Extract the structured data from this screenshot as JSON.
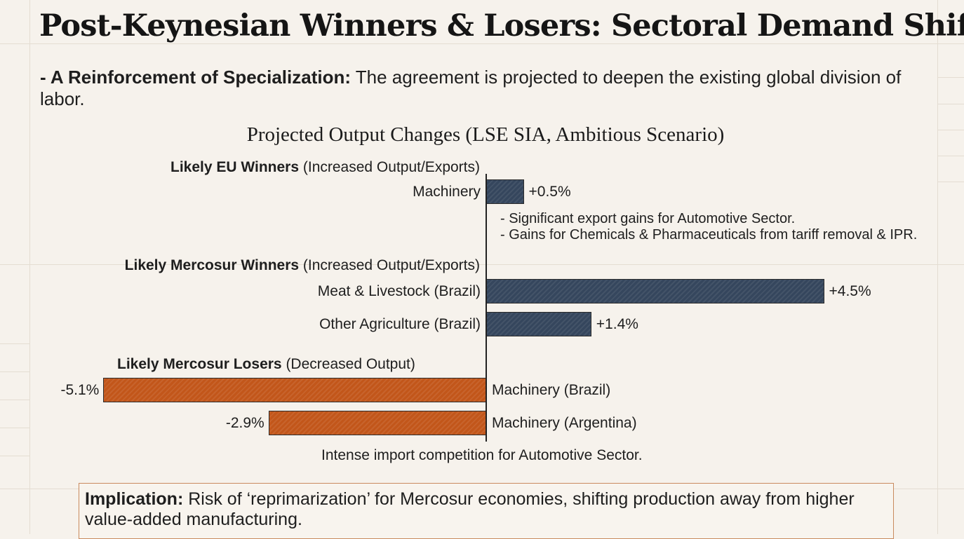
{
  "title": "Post-Keynesian Winners & Losers: Sectoral Demand Shifts",
  "subtitle": {
    "lead": "- A Reinforcement of Specialization:",
    "text": " The agreement is projected to deepen the existing global division of labor."
  },
  "groups": {
    "eu_winners": {
      "bold": "Likely EU Winners",
      "rest": " (Increased Output/Exports)"
    },
    "mercosur_winners": {
      "bold": "Likely Mercosur Winners",
      "rest": " (Increased Output/Exports)"
    },
    "mercosur_losers": {
      "bold": "Likely Mercosur Losers",
      "rest": " (Decreased Output)"
    }
  },
  "eu_notes": [
    "- Significant export gains for Automotive Sector.",
    "- Gains for Chemicals & Pharmaceuticals from tariff removal & IPR."
  ],
  "loser_note": "Intense import competition for Automotive Sector.",
  "implication": {
    "lead": "Implication:",
    "text": " Risk of ‘reprimarization’ for Mercosur economies, shifting production away from higher value-added manufacturing."
  },
  "colors": {
    "winner": "#35465d",
    "loser": "#c2561a",
    "background": "#f6f2ec"
  },
  "chart_data": {
    "type": "bar",
    "orientation": "horizontal",
    "title": "Projected Output Changes (LSE SIA, Ambitious Scenario)",
    "unit": "% change in output",
    "categories": [
      "Machinery",
      "Meat & Livestock (Brazil)",
      "Other Agriculture (Brazil)",
      "Machinery (Brazil)",
      "Machinery (Argentina)"
    ],
    "values": [
      0.5,
      4.5,
      1.4,
      -5.1,
      -2.9
    ],
    "value_labels": [
      "+0.5%",
      "+4.5%",
      "+1.4%",
      "-5.1%",
      "-2.9%"
    ],
    "groups": [
      "EU Winners",
      "Mercosur Winners",
      "Mercosur Winners",
      "Mercosur Losers",
      "Mercosur Losers"
    ],
    "xlim": [
      -5.1,
      4.5
    ]
  }
}
